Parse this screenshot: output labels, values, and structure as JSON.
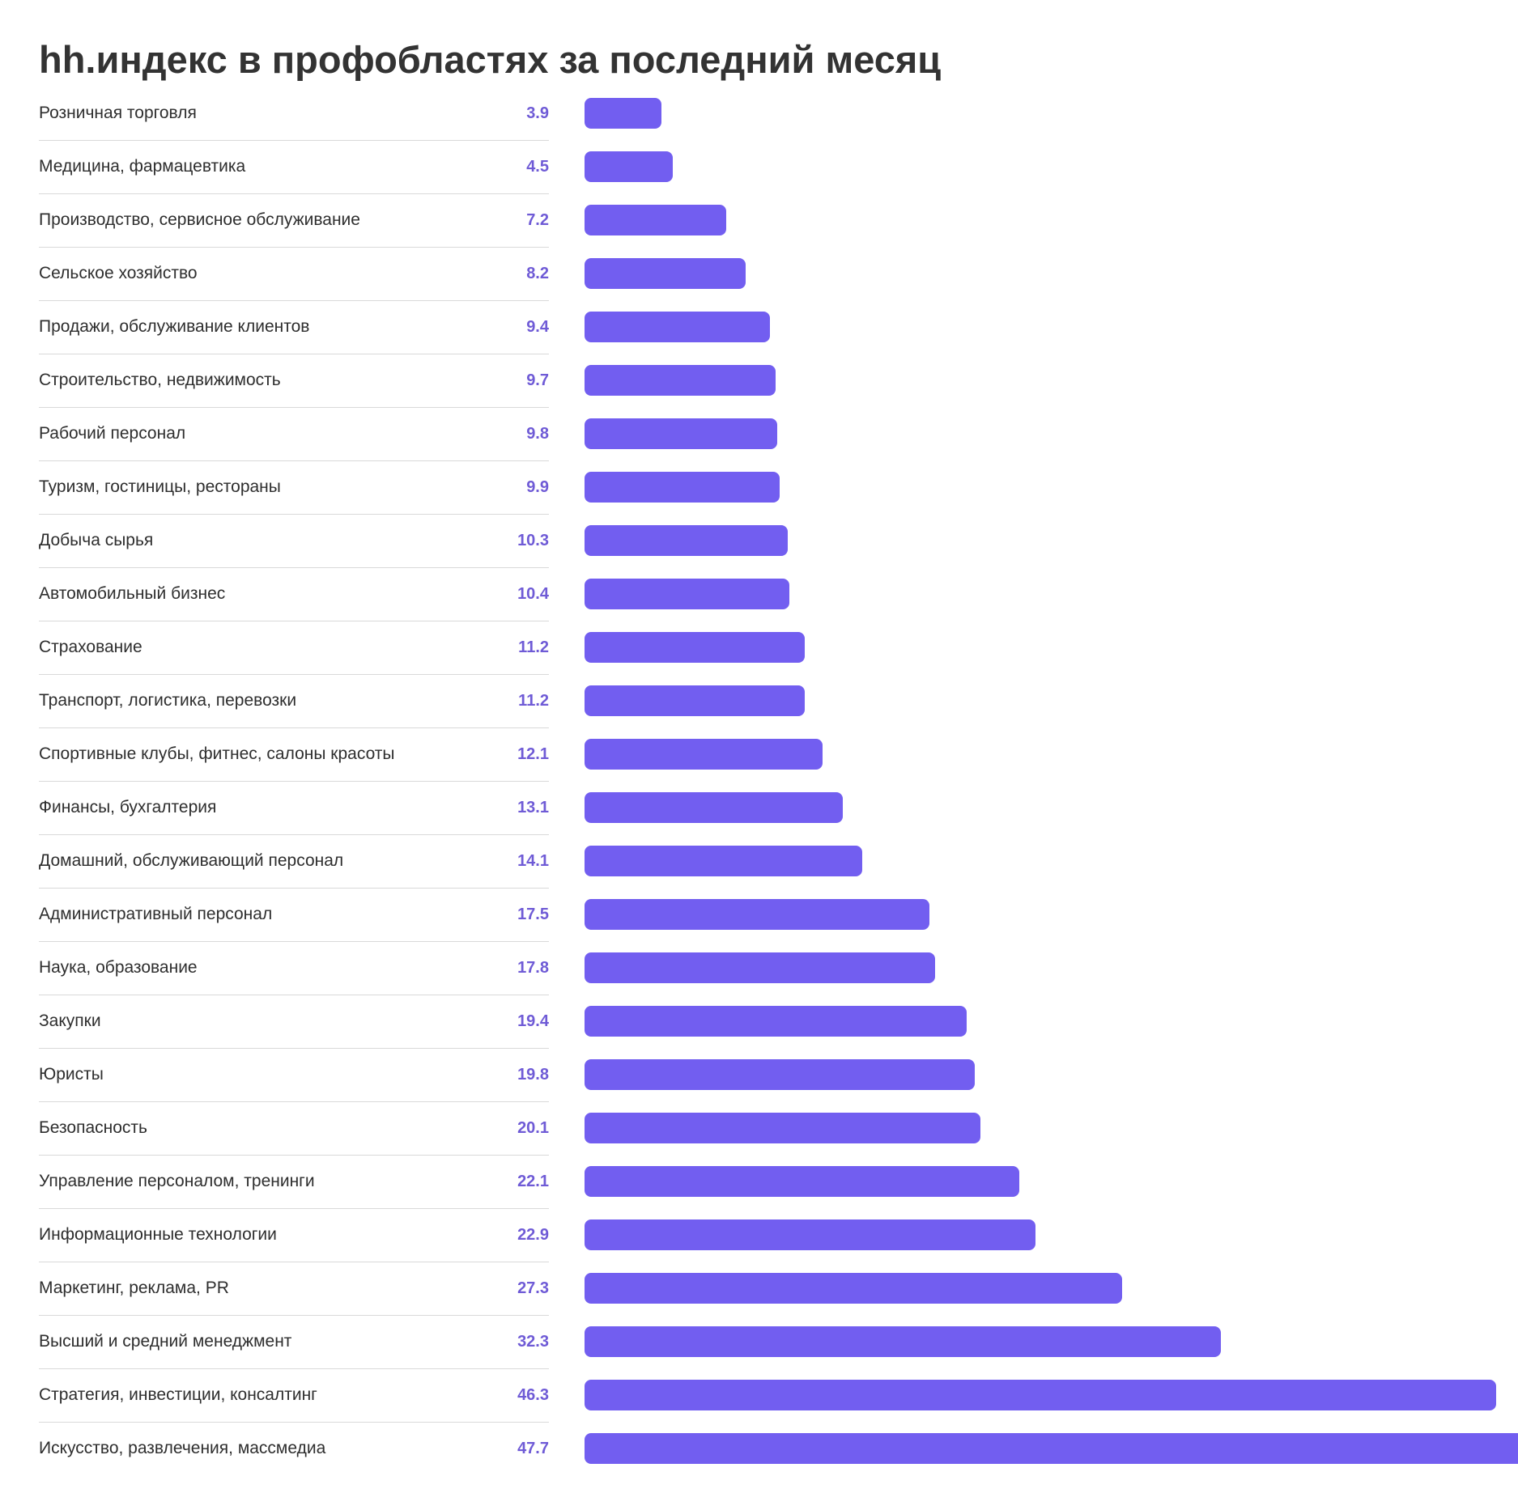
{
  "chart_data": {
    "type": "bar",
    "orientation": "horizontal",
    "title": "hh.индекс в профобластях за последний месяц",
    "xlim": [
      0,
      47.7
    ],
    "grid": false,
    "colors": {
      "bar": "#725ef0",
      "value_label": "#6f5bd6"
    },
    "categories": [
      "Розничная торговля",
      "Медицина, фармацевтика",
      "Производство, сервисное обслуживание",
      "Сельское хозяйство",
      "Продажи, обслуживание клиентов",
      "Строительство, недвижимость",
      "Рабочий персонал",
      "Туризм, гостиницы, рестораны",
      "Добыча сырья",
      "Автомобильный бизнес",
      "Страхование",
      "Транспорт, логистика, перевозки",
      "Спортивные клубы, фитнес, салоны красоты",
      "Финансы, бухгалтерия",
      "Домашний, обслуживающий персонал",
      "Административный персонал",
      "Наука, образование",
      "Закупки",
      "Юристы",
      "Безопасность",
      "Управление персоналом, тренинги",
      "Информационные технологии",
      "Маркетинг, реклама, PR",
      "Высший и средний менеджмент",
      "Стратегия, инвестиции, консалтинг",
      "Искусство, развлечения, массмедиа"
    ],
    "values": [
      3.9,
      4.5,
      7.2,
      8.2,
      9.4,
      9.7,
      9.8,
      9.9,
      10.3,
      10.4,
      11.2,
      11.2,
      12.1,
      13.1,
      14.1,
      17.5,
      17.8,
      19.4,
      19.8,
      20.1,
      22.1,
      22.9,
      27.3,
      32.3,
      46.3,
      47.7
    ],
    "value_labels": [
      "3.9",
      "4.5",
      "7.2",
      "8.2",
      "9.4",
      "9.7",
      "9.8",
      "9.9",
      "10.3",
      "10.4",
      "11.2",
      "11.2",
      "12.1",
      "13.1",
      "14.1",
      "17.5",
      "17.8",
      "19.4",
      "19.8",
      "20.1",
      "22.1",
      "22.9",
      "27.3",
      "32.3",
      "46.3",
      "47.7"
    ]
  }
}
